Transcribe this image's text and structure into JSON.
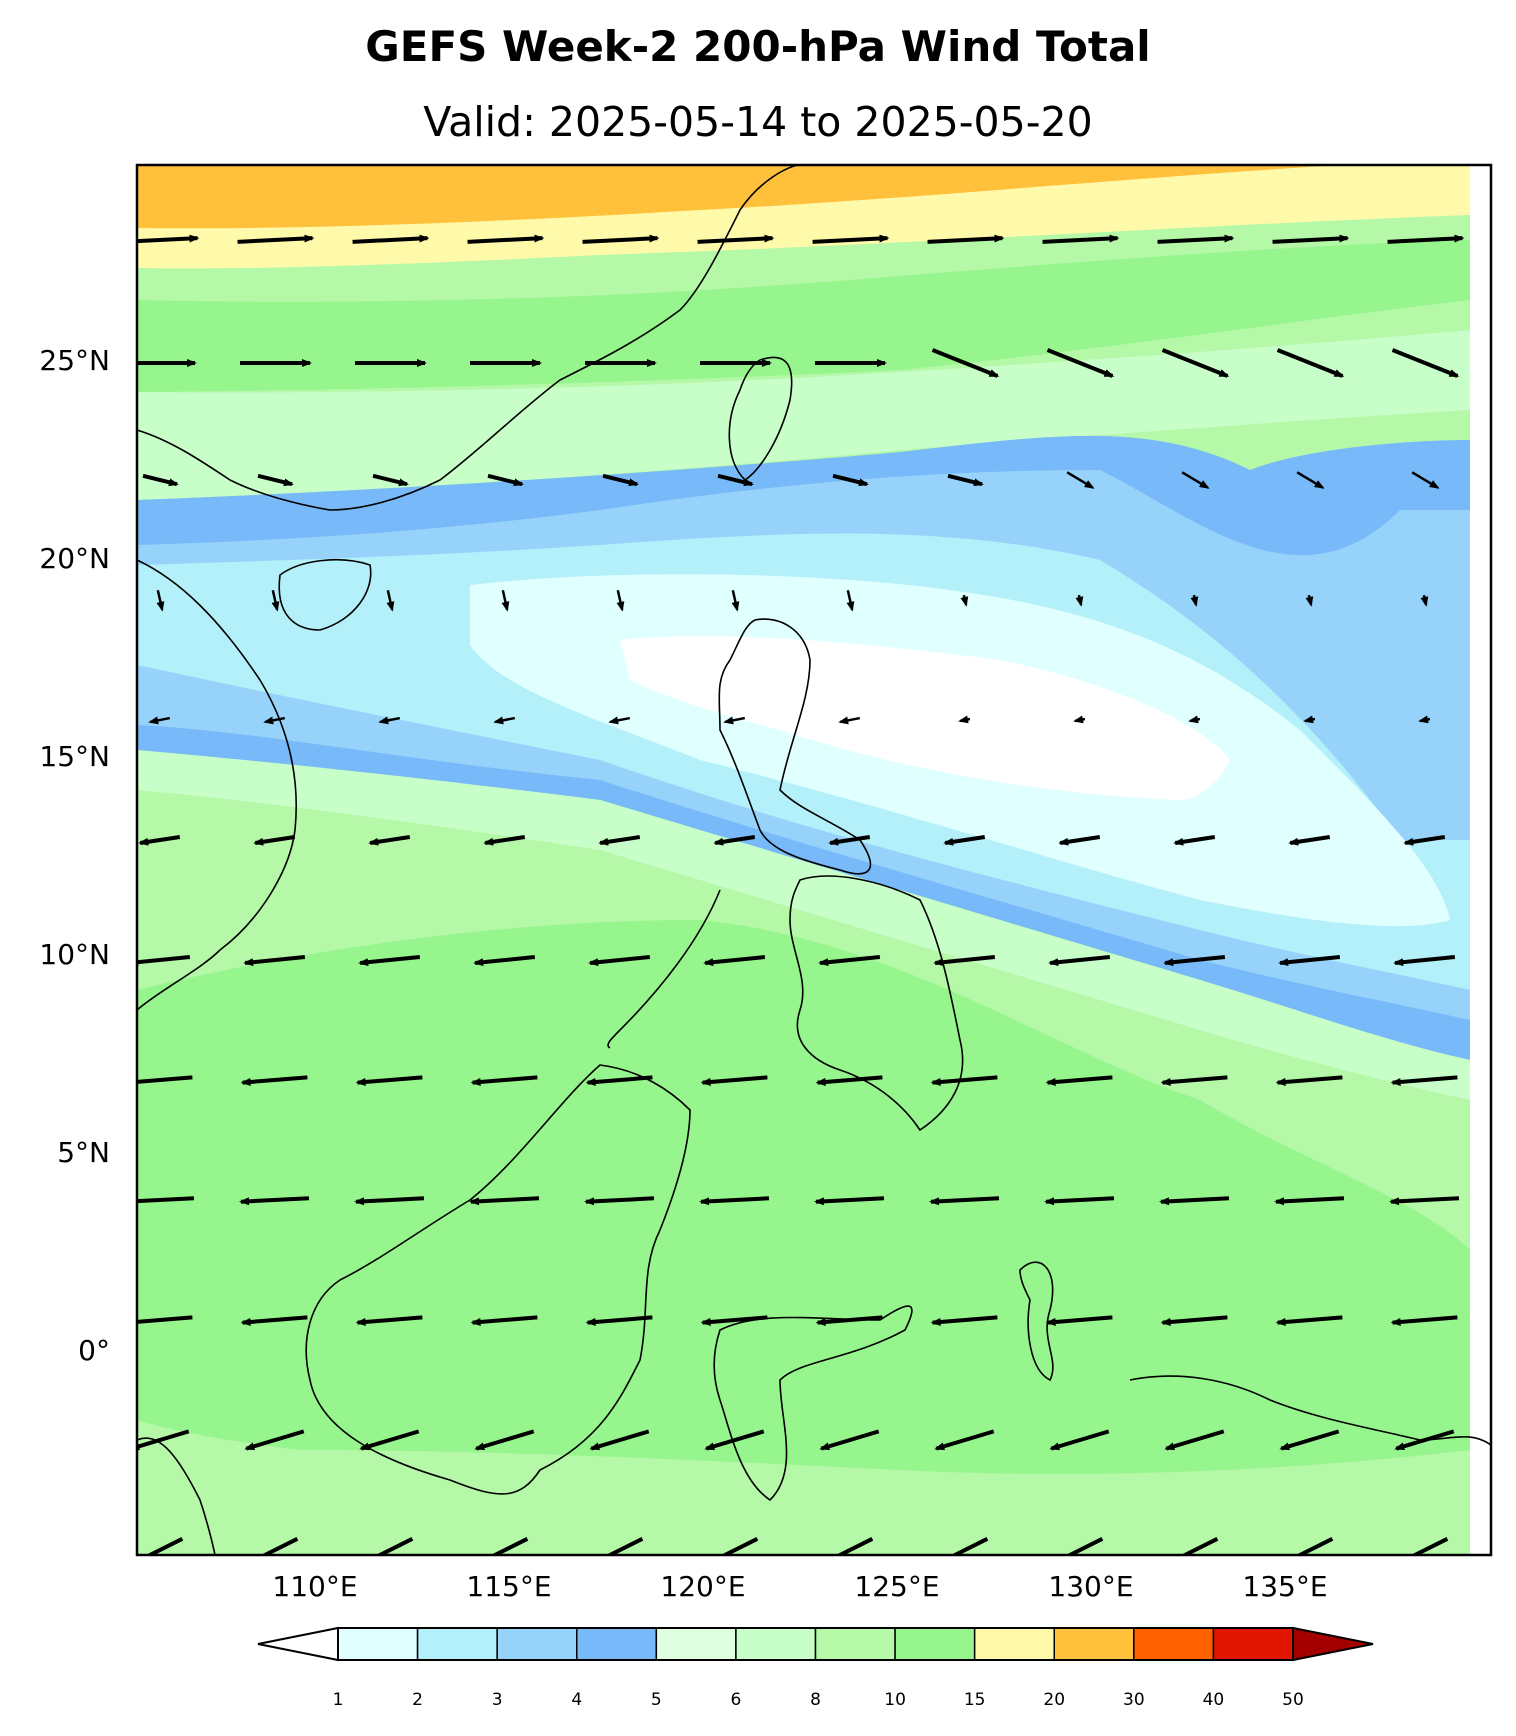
{
  "title": "GEFS Week-2 200-hPa Wind Total",
  "subtitle": "Valid: 2025-05-14 to 2025-05-20",
  "axes": {
    "lat_labels": [
      "25°N",
      "20°N",
      "15°N",
      "10°N",
      "5°N",
      "0°"
    ],
    "lon_labels": [
      "110°E",
      "115°E",
      "120°E",
      "125°E",
      "130°E",
      "135°E"
    ]
  },
  "colorbar": {
    "levels": [
      "1",
      "2",
      "3",
      "4",
      "5",
      "6",
      "8",
      "10",
      "15",
      "20",
      "30",
      "40",
      "50"
    ],
    "colors": [
      "#e0ffff",
      "#b4f0fa",
      "#96d2fa",
      "#78b9fa",
      "#e0ffe0",
      "#c8ffc8",
      "#b4f8a8",
      "#96f58c",
      "#fffaaa",
      "#ffc03c",
      "#ff6000",
      "#e11400",
      "#a50000"
    ],
    "under_color": "#ffffff",
    "over_color": "#a50000"
  },
  "map": {
    "region": "Philippines / South China Sea / Maritime Continent",
    "extent_lon": [
      105.5,
      139.5
    ],
    "extent_lat": [
      -4.5,
      30.5
    ]
  }
}
